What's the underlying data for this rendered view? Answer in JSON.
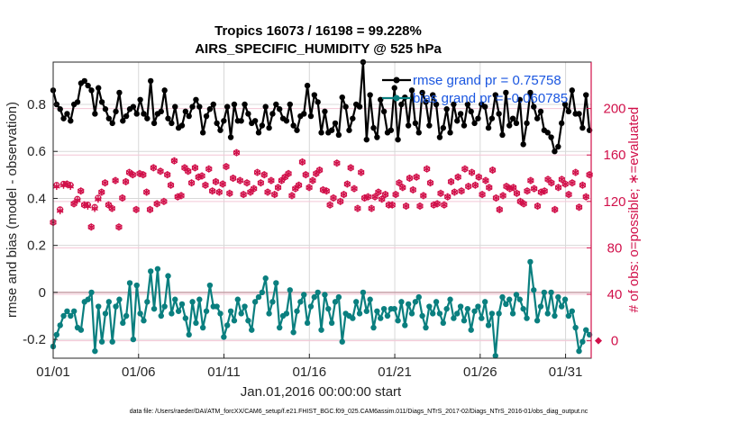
{
  "chart_data": {
    "type": "line",
    "title_line1": "Tropics 16073 / 16198 = 99.228%",
    "title_line2": "AIRS_SPECIFIC_HUMIDITY @ 525 hPa",
    "xlabel": "Jan.01,2016 00:00:00 start",
    "ylabel_left": "rmse and bias (model - observation)",
    "ylabel_right": "# of obs: o=possible; ∗=evaluated",
    "footnote": "data file: /Users/raeder/DAI/ATM_forcXX/CAM6_setup/f.e21.FHIST_BGC.f09_025.CAM6assim.011/Diags_NTrS_2017-02/Diags_NTrS_2016-01/obs_diag_output.nc",
    "x_ticks": [
      {
        "day": 1,
        "label": "01/01"
      },
      {
        "day": 6,
        "label": "01/06"
      },
      {
        "day": 11,
        "label": "01/11"
      },
      {
        "day": 16,
        "label": "01/16"
      },
      {
        "day": 21,
        "label": "01/21"
      },
      {
        "day": 26,
        "label": "01/26"
      },
      {
        "day": 31,
        "label": "01/31"
      }
    ],
    "xlim": [
      1,
      32.5
    ],
    "left_axis": {
      "ylim": [
        -0.28,
        0.98
      ],
      "ticks": [
        -0.2,
        0,
        0.2,
        0.4,
        0.6,
        0.8
      ],
      "tick_labels": [
        "-0.2",
        "0",
        "0.2",
        "0.4",
        "0.6",
        "0.8"
      ]
    },
    "right_axis": {
      "ylim": [
        -15,
        240
      ],
      "ticks": [
        0,
        40,
        80,
        120,
        160,
        200
      ],
      "tick_labels": [
        "0",
        "40",
        "80",
        "120",
        "160",
        "200"
      ]
    },
    "legend": [
      {
        "label": "rmse grand pr = 0.75758",
        "color": "#000000"
      },
      {
        "label": "bias grand pr = -0.060785",
        "color": "#0a7f7f"
      }
    ],
    "series": [
      {
        "name": "rmse",
        "color": "#000000",
        "axis": "left",
        "values": [
          0.86,
          0.8,
          0.78,
          0.74,
          0.76,
          0.73,
          0.8,
          0.81,
          0.89,
          0.9,
          0.88,
          0.86,
          0.76,
          0.87,
          0.81,
          0.78,
          0.74,
          0.72,
          0.77,
          0.85,
          0.73,
          0.75,
          0.78,
          0.79,
          0.76,
          0.82,
          0.76,
          0.74,
          0.9,
          0.72,
          0.76,
          0.77,
          0.86,
          0.74,
          0.72,
          0.79,
          0.7,
          0.71,
          0.77,
          0.75,
          0.79,
          0.82,
          0.79,
          0.68,
          0.75,
          0.78,
          0.8,
          0.72,
          0.69,
          0.73,
          0.79,
          0.66,
          0.8,
          0.73,
          0.73,
          0.8,
          0.76,
          0.72,
          0.73,
          0.68,
          0.71,
          0.79,
          0.7,
          0.76,
          0.8,
          0.78,
          0.74,
          0.73,
          0.8,
          0.71,
          0.69,
          0.75,
          0.76,
          0.88,
          0.75,
          0.84,
          0.81,
          0.68,
          0.77,
          0.68,
          0.69,
          0.72,
          0.67,
          0.83,
          0.79,
          0.69,
          0.74,
          0.8,
          0.79,
          0.98,
          0.65,
          0.84,
          0.7,
          0.66,
          0.82,
          0.77,
          0.68,
          0.69,
          0.87,
          0.65,
          0.8,
          0.83,
          0.71,
          0.86,
          0.72,
          0.68,
          0.85,
          0.81,
          0.71,
          0.84,
          0.8,
          0.66,
          0.7,
          0.78,
          0.68,
          0.8,
          0.73,
          0.76,
          0.71,
          0.8,
          0.77,
          0.72,
          0.74,
          0.8,
          0.79,
          0.7,
          0.74,
          0.84,
          0.76,
          0.67,
          0.85,
          0.71,
          0.74,
          0.72,
          0.82,
          0.63,
          0.72,
          0.85,
          0.79,
          0.74,
          0.77,
          0.69,
          0.68,
          0.66,
          0.6,
          0.62,
          0.72,
          0.8,
          0.77,
          0.86,
          0.76,
          0.76,
          0.7,
          0.84,
          0.69
        ]
      },
      {
        "name": "bias",
        "color": "#0a7f7f",
        "axis": "left",
        "values": [
          -0.23,
          -0.18,
          -0.14,
          -0.1,
          -0.08,
          -0.1,
          -0.08,
          -0.15,
          -0.16,
          -0.04,
          -0.03,
          0.0,
          -0.25,
          -0.06,
          -0.21,
          -0.09,
          -0.04,
          -0.21,
          -0.06,
          -0.03,
          -0.13,
          -0.1,
          0.04,
          -0.2,
          0.03,
          -0.09,
          -0.12,
          -0.04,
          0.09,
          -0.07,
          0.1,
          -0.1,
          -0.06,
          0.07,
          -0.09,
          -0.03,
          -0.08,
          -0.05,
          -0.11,
          -0.18,
          -0.04,
          -0.13,
          -0.03,
          -0.15,
          -0.08,
          0.03,
          -0.06,
          -0.06,
          -0.09,
          -0.19,
          -0.14,
          -0.08,
          -0.12,
          -0.03,
          -0.09,
          -0.06,
          -0.12,
          -0.16,
          -0.04,
          -0.02,
          0.0,
          0.06,
          -0.09,
          -0.04,
          0.04,
          -0.15,
          -0.1,
          -0.09,
          0.01,
          -0.17,
          -0.08,
          -0.04,
          -0.01,
          -0.13,
          -0.06,
          -0.02,
          0.0,
          -0.16,
          -0.01,
          -0.07,
          -0.13,
          -0.04,
          -0.02,
          -0.21,
          -0.09,
          -0.1,
          -0.11,
          -0.04,
          -0.09,
          0.0,
          -0.08,
          -0.03,
          -0.15,
          -0.08,
          -0.11,
          -0.07,
          -0.1,
          -0.07,
          -0.07,
          -0.12,
          -0.04,
          -0.14,
          -0.05,
          -0.09,
          -0.04,
          -0.02,
          -0.1,
          -0.15,
          -0.06,
          -0.09,
          -0.04,
          -0.09,
          -0.13,
          -0.07,
          -0.03,
          -0.11,
          -0.09,
          -0.06,
          -0.12,
          -0.07,
          -0.16,
          -0.08,
          -0.06,
          -0.11,
          -0.04,
          -0.14,
          -0.09,
          -0.27,
          -0.09,
          -0.02,
          -0.05,
          -0.03,
          -0.09,
          -0.01,
          -0.03,
          -0.07,
          -0.11,
          0.13,
          0.01,
          -0.12,
          -0.06,
          0.0,
          -0.09,
          0.0,
          -0.1,
          -0.02,
          -0.06,
          -0.03,
          -0.1,
          -0.08,
          -0.15,
          -0.25,
          -0.21,
          -0.16,
          -0.18
        ]
      },
      {
        "name": "# obs evaluated",
        "color": "#d1104a",
        "axis": "right",
        "marker": "asterisk",
        "values": [
          102,
          133,
          112,
          134,
          135,
          133,
          118,
          121,
          129,
          117,
          116,
          98,
          114,
          122,
          128,
          136,
          117,
          114,
          138,
          98,
          123,
          137,
          145,
          143,
          113,
          144,
          143,
          128,
          113,
          149,
          118,
          146,
          120,
          143,
          134,
          155,
          124,
          125,
          149,
          146,
          136,
          149,
          141,
          142,
          134,
          148,
          129,
          137,
          128,
          135,
          150,
          127,
          140,
          162,
          138,
          126,
          136,
          128,
          131,
          145,
          136,
          143,
          128,
          138,
          126,
          132,
          138,
          141,
          144,
          125,
          131,
          134,
          154,
          143,
          132,
          138,
          144,
          147,
          130,
          129,
          117,
          123,
          153,
          120,
          126,
          135,
          149,
          131,
          114,
          145,
          123,
          124,
          114,
          124,
          128,
          122,
          126,
          117,
          117,
          126,
          136,
          132,
          116,
          140,
          130,
          141,
          116,
          125,
          148,
          136,
          117,
          118,
          127,
          117,
          124,
          137,
          128,
          141,
          129,
          148,
          133,
          145,
          134,
          141,
          126,
          138,
          132,
          147,
          123,
          113,
          125,
          133,
          131,
          132,
          127,
          120,
          118,
          129,
          138,
          131,
          116,
          128,
          129,
          139,
          136,
          113,
          132,
          139,
          135,
          126,
          136,
          145,
          115,
          134,
          124,
          143
        ]
      },
      {
        "name": "# obs possible",
        "color": "#d1104a",
        "axis": "right",
        "marker": "circle",
        "values": [
          102,
          134,
          113,
          135,
          135,
          134,
          118,
          122,
          129,
          117,
          117,
          98,
          115,
          123,
          128,
          136,
          117,
          114,
          138,
          98,
          123,
          137,
          145,
          143,
          113,
          144,
          143,
          128,
          113,
          149,
          118,
          146,
          120,
          143,
          134,
          155,
          124,
          125,
          149,
          146,
          136,
          149,
          141,
          142,
          134,
          148,
          129,
          137,
          128,
          135,
          150,
          127,
          140,
          162,
          138,
          126,
          136,
          128,
          131,
          145,
          136,
          143,
          128,
          138,
          126,
          132,
          138,
          141,
          144,
          125,
          131,
          134,
          154,
          143,
          132,
          138,
          144,
          147,
          130,
          129,
          117,
          123,
          153,
          120,
          126,
          135,
          149,
          131,
          114,
          145,
          123,
          124,
          114,
          124,
          128,
          122,
          126,
          117,
          117,
          126,
          136,
          132,
          116,
          140,
          130,
          141,
          116,
          125,
          148,
          136,
          117,
          118,
          127,
          117,
          124,
          137,
          128,
          141,
          129,
          148,
          133,
          145,
          134,
          141,
          126,
          138,
          132,
          147,
          123,
          113,
          125,
          133,
          131,
          132,
          127,
          120,
          118,
          129,
          138,
          131,
          116,
          128,
          129,
          139,
          136,
          113,
          132,
          139,
          135,
          126,
          136,
          145,
          115,
          134,
          124,
          143
        ]
      }
    ]
  }
}
